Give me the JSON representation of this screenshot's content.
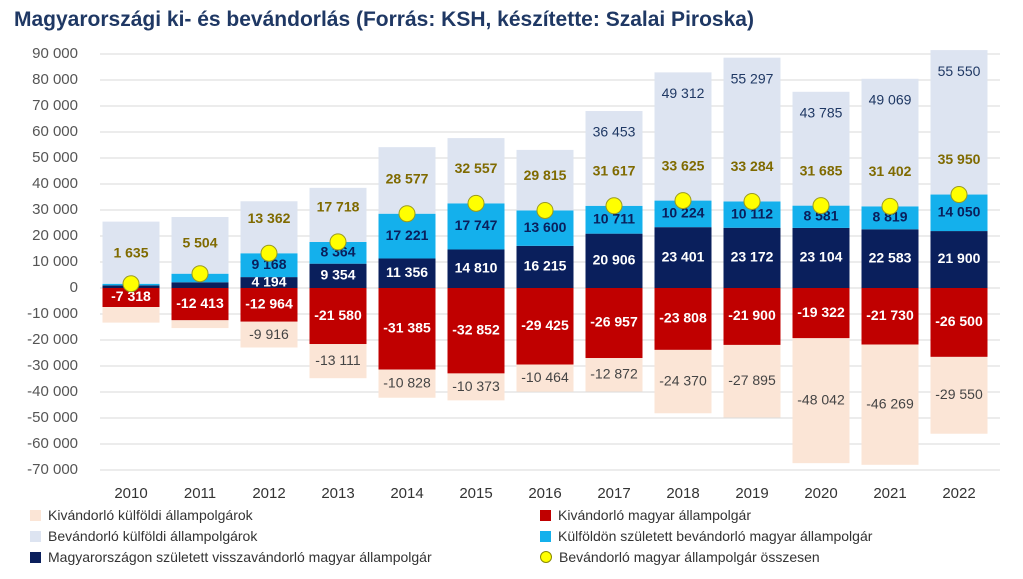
{
  "chart_data": {
    "type": "bar",
    "stacked": true,
    "title": "Magyarországi ki- és bevándorlás (Forrás: KSH, készítette: Szalai Piroska)",
    "xlabel": "",
    "ylabel": "",
    "ylim": [
      -70000,
      90000
    ],
    "yticks": [
      90000,
      80000,
      70000,
      60000,
      50000,
      40000,
      30000,
      20000,
      10000,
      0,
      -10000,
      -20000,
      -30000,
      -40000,
      -50000,
      -60000,
      -70000
    ],
    "ytick_labels": [
      "90 000",
      "80 000",
      "70 000",
      "60 000",
      "50 000",
      "40 000",
      "30 000",
      "20 000",
      "10 000",
      "0",
      "-10 000",
      "-20 000",
      "-30 000",
      "-40 000",
      "-50 000",
      "-60 000",
      "-70 000"
    ],
    "grid": true,
    "legend_placement": "bottom",
    "categories": [
      "2010",
      "2011",
      "2012",
      "2013",
      "2014",
      "2015",
      "2016",
      "2017",
      "2018",
      "2019",
      "2020",
      "2021",
      "2022"
    ],
    "series": [
      {
        "name": "Magyarországon született visszavándorló magyar állampolgár",
        "color": "#0a1f5c",
        "label_color": "#ffffff",
        "values": [
          1000,
          2200,
          4194,
          9354,
          11356,
          14810,
          16215,
          20906,
          23401,
          23172,
          23104,
          22583,
          21900
        ],
        "labels": [
          null,
          null,
          "4 194",
          "9 354",
          "11 356",
          "14 810",
          "16 215",
          "20 906",
          "23 401",
          "23 172",
          "23 104",
          "22 583",
          "21 900"
        ]
      },
      {
        "name": "Külföldön született bevándorló magyar állampolgár",
        "color": "#14b0ec",
        "label_color": "#0a1f5c",
        "values": [
          635,
          3304,
          9168,
          8364,
          17221,
          17747,
          13600,
          10711,
          10224,
          10112,
          8581,
          8819,
          14050
        ],
        "labels": [
          null,
          null,
          "9 168",
          "8 364",
          "17 221",
          "17 747",
          "13 600",
          "10 711",
          "10 224",
          "10 112",
          "8 581",
          "8 819",
          "14 050"
        ]
      },
      {
        "name": "Bevándorló külföldi állampolgárok",
        "color": "#dde4f1",
        "label_color": "#1f3864",
        "values": [
          23900,
          21800,
          20000,
          20800,
          25600,
          25100,
          23300,
          36453,
          49312,
          55297,
          43785,
          49069,
          55550
        ],
        "labels": [
          null,
          null,
          null,
          null,
          null,
          null,
          null,
          "36 453",
          "49 312",
          "55 297",
          "43 785",
          "49 069",
          "55 550"
        ]
      },
      {
        "name": "Kivándorló magyar állampolgár",
        "color": "#c00000",
        "label_color": "#ffffff",
        "values": [
          -7318,
          -12413,
          -12964,
          -21580,
          -31385,
          -32852,
          -29425,
          -26957,
          -23808,
          -21900,
          -19322,
          -21730,
          -26500
        ],
        "labels": [
          "-7 318",
          "-12 413",
          "-12 964",
          "-21 580",
          "-31 385",
          "-32 852",
          "-29 425",
          "-26 957",
          "-23 808",
          "-21 900",
          "-19 322",
          "-21 730",
          "-26 500"
        ]
      },
      {
        "name": "Kivándorló külföldi állampolgárok",
        "color": "#fbe5d6",
        "label_color": "#444444",
        "values": [
          -6000,
          -3000,
          -9916,
          -13111,
          -10828,
          -10373,
          -10464,
          -12872,
          -24370,
          -27895,
          -48042,
          -46269,
          -29550
        ],
        "labels": [
          null,
          null,
          "-9 916",
          "-13 111",
          "-10 828",
          "-10 373",
          "-10 464",
          "-12 872",
          "-24 370",
          "-27 895",
          "-48 042",
          "-46 269",
          "-29 550"
        ]
      }
    ],
    "markers": {
      "name": "Bevándorló magyar állampolgár összesen",
      "color": "#ffff00",
      "label_color": "#7f6a00",
      "values": [
        1635,
        5504,
        13362,
        17718,
        28577,
        32557,
        29815,
        31617,
        33625,
        33284,
        31685,
        31402,
        35950
      ],
      "labels": [
        "1 635",
        "5 504",
        "13 362",
        "17 718",
        "28 577",
        "32 557",
        "29 815",
        "31 617",
        "33 625",
        "33 284",
        "31 685",
        "31 402",
        "35 950"
      ]
    },
    "legend_order": [
      4,
      3,
      2,
      1,
      0,
      "markers"
    ]
  }
}
